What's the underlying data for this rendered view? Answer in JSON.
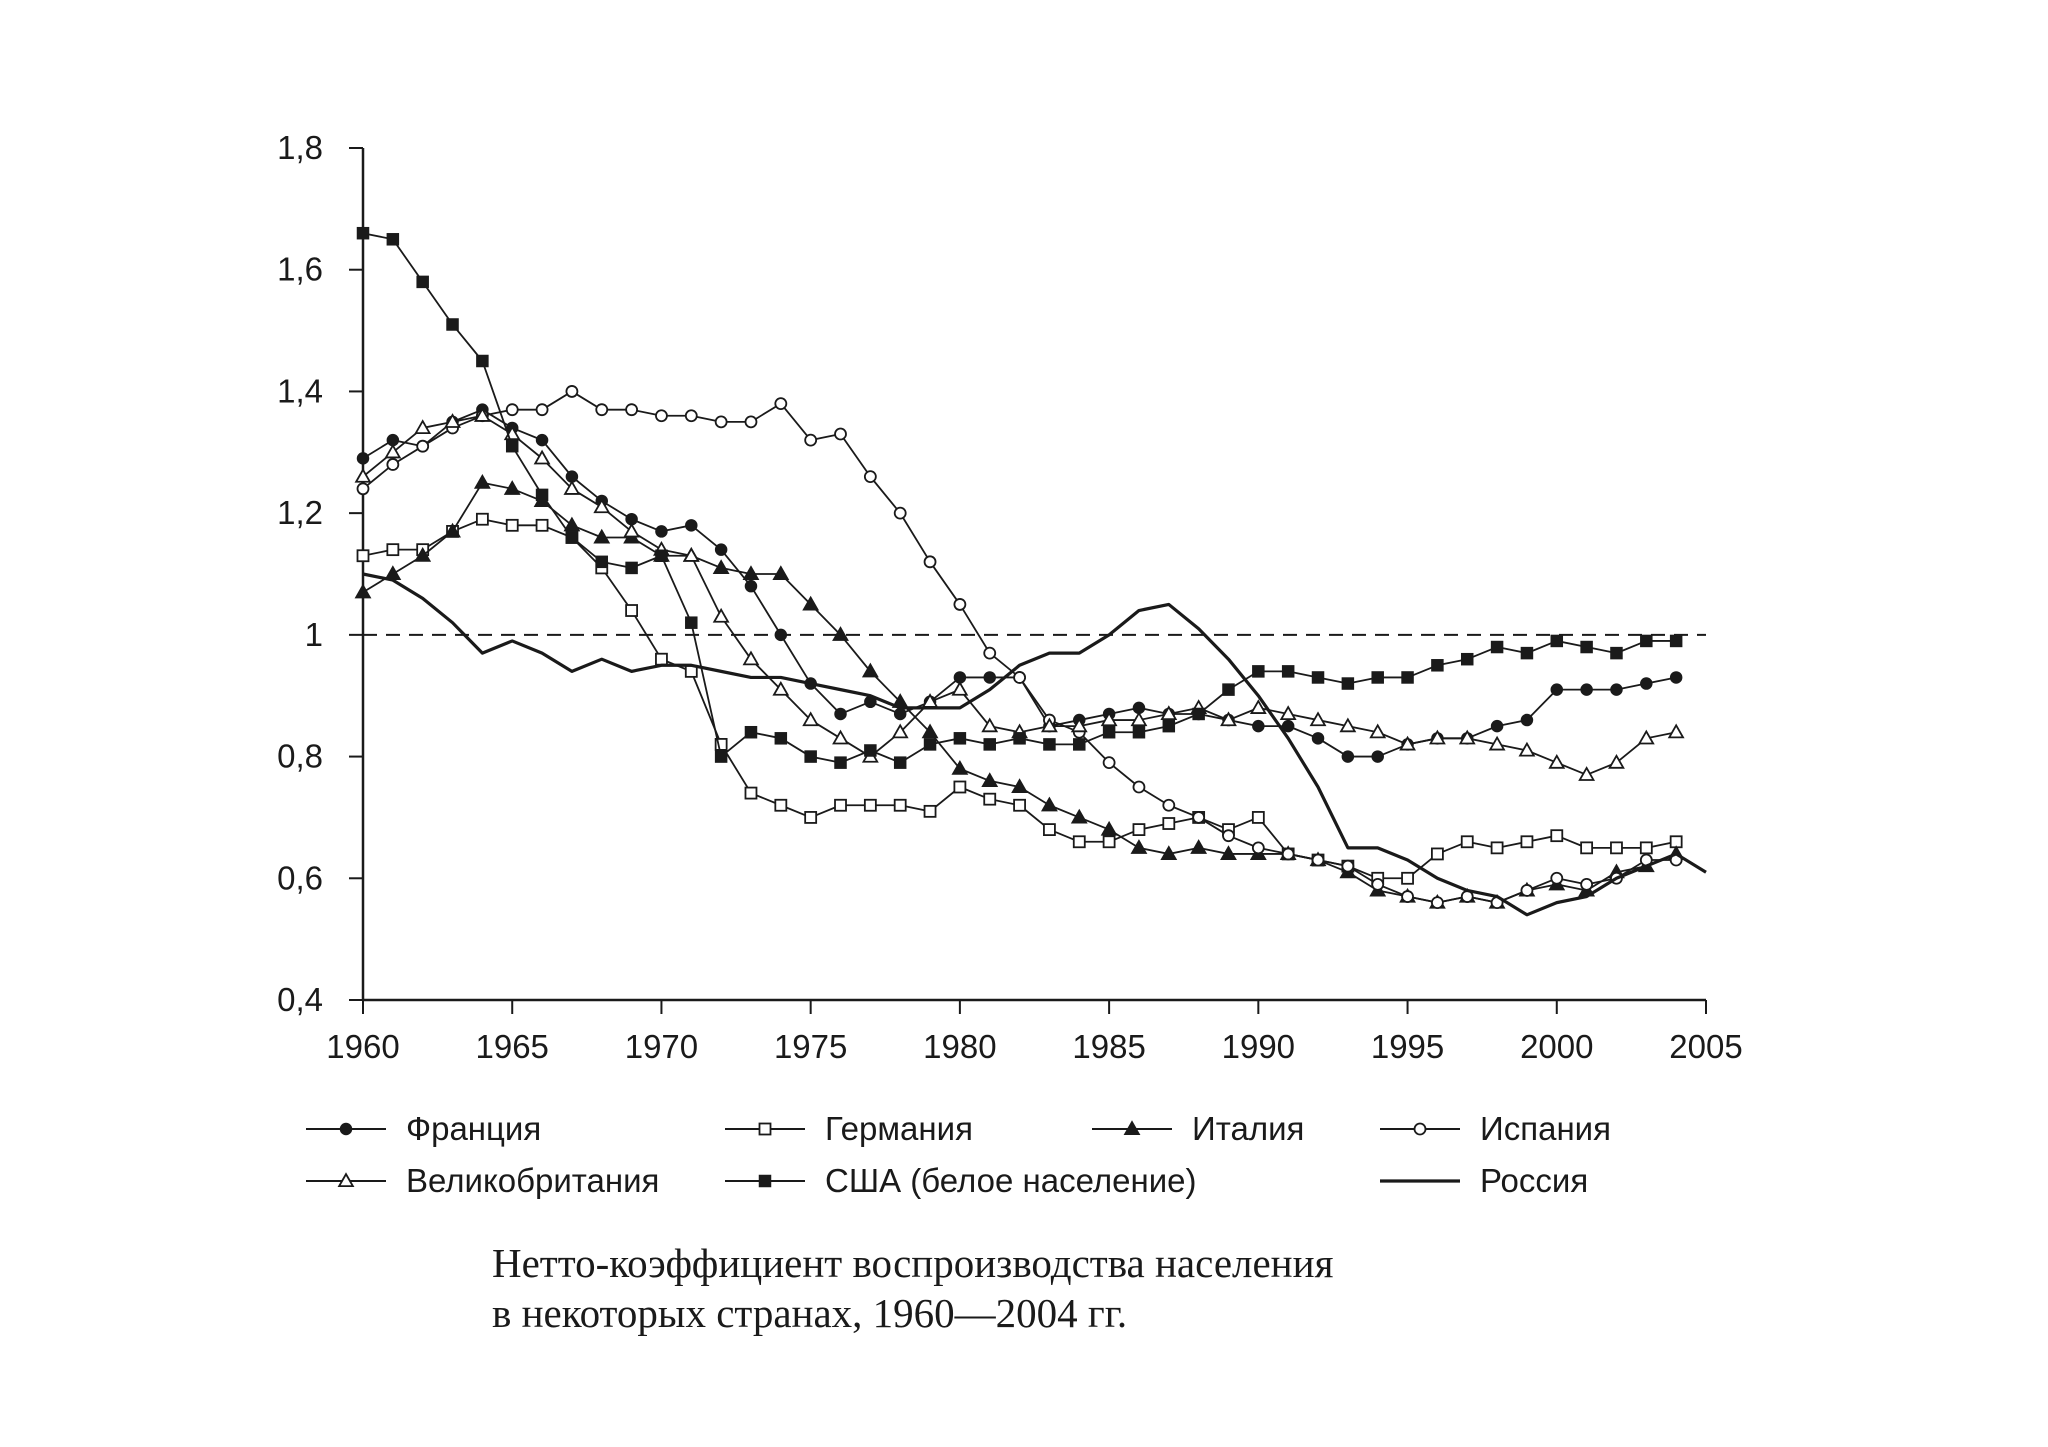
{
  "caption": {
    "line1": "Нетто-коэффициент воспроизводства населения",
    "line2": "в некоторых странах, 1960—2004 гг."
  },
  "chart_data": {
    "type": "line",
    "title": "Нетто-коэффициент воспроизводства населения в некоторых странах, 1960—2004 гг.",
    "xlabel": "",
    "ylabel": "",
    "xlim": [
      1960,
      2005
    ],
    "ylim": [
      0.4,
      1.8
    ],
    "x_ticks": [
      "1960",
      "1965",
      "1970",
      "1975",
      "1980",
      "1985",
      "1990",
      "1995",
      "2000",
      "2005"
    ],
    "y_ticks": [
      "0,4",
      "0,6",
      "0,8",
      "1",
      "1,2",
      "1,4",
      "1,6",
      "1,8"
    ],
    "reference_line": {
      "y": 1,
      "style": "dashed"
    },
    "legend": {
      "position": "bottom",
      "columns": 4
    },
    "grid": false,
    "series": [
      {
        "name": "Франция",
        "marker": "filled-circle",
        "color": "#1a1a1a",
        "x": [
          1960,
          1961,
          1962,
          1963,
          1964,
          1965,
          1966,
          1967,
          1968,
          1969,
          1970,
          1971,
          1972,
          1973,
          1974,
          1975,
          1976,
          1977,
          1978,
          1979,
          1980,
          1981,
          1982,
          1983,
          1984,
          1985,
          1986,
          1987,
          1988,
          1989,
          1990,
          1991,
          1992,
          1993,
          1994,
          1995,
          1996,
          1997,
          1998,
          1999,
          2000,
          2001,
          2002,
          2003,
          2004
        ],
        "values": [
          1.29,
          1.32,
          1.31,
          1.35,
          1.37,
          1.34,
          1.32,
          1.26,
          1.22,
          1.19,
          1.17,
          1.18,
          1.14,
          1.08,
          1.0,
          0.92,
          0.87,
          0.89,
          0.87,
          0.89,
          0.93,
          0.93,
          0.93,
          0.85,
          0.86,
          0.87,
          0.88,
          0.87,
          0.87,
          0.86,
          0.85,
          0.85,
          0.83,
          0.8,
          0.8,
          0.82,
          0.83,
          0.83,
          0.85,
          0.86,
          0.91,
          0.91,
          0.91,
          0.92,
          0.93
        ]
      },
      {
        "name": "Германия",
        "marker": "open-square",
        "color": "#1a1a1a",
        "x": [
          1960,
          1961,
          1962,
          1963,
          1964,
          1965,
          1966,
          1967,
          1968,
          1969,
          1970,
          1971,
          1972,
          1973,
          1974,
          1975,
          1976,
          1977,
          1978,
          1979,
          1980,
          1981,
          1982,
          1983,
          1984,
          1985,
          1986,
          1987,
          1988,
          1989,
          1990,
          1991,
          1992,
          1993,
          1994,
          1995,
          1996,
          1997,
          1998,
          1999,
          2000,
          2001,
          2002,
          2003,
          2004
        ],
        "values": [
          1.13,
          1.14,
          1.14,
          1.17,
          1.19,
          1.18,
          1.18,
          1.16,
          1.11,
          1.04,
          0.96,
          0.94,
          0.82,
          0.74,
          0.72,
          0.7,
          0.72,
          0.72,
          0.72,
          0.71,
          0.75,
          0.73,
          0.72,
          0.68,
          0.66,
          0.66,
          0.68,
          0.69,
          0.7,
          0.68,
          0.7,
          0.64,
          0.63,
          0.62,
          0.6,
          0.6,
          0.64,
          0.66,
          0.65,
          0.66,
          0.67,
          0.65,
          0.65,
          0.65,
          0.66
        ]
      },
      {
        "name": "Италия",
        "marker": "filled-triangle",
        "color": "#1a1a1a",
        "x": [
          1960,
          1961,
          1962,
          1963,
          1964,
          1965,
          1966,
          1967,
          1968,
          1969,
          1970,
          1971,
          1972,
          1973,
          1974,
          1975,
          1976,
          1977,
          1978,
          1979,
          1980,
          1981,
          1982,
          1983,
          1984,
          1985,
          1986,
          1987,
          1988,
          1989,
          1990,
          1991,
          1992,
          1993,
          1994,
          1995,
          1996,
          1997,
          1998,
          1999,
          2000,
          2001,
          2002,
          2003,
          2004
        ],
        "values": [
          1.07,
          1.1,
          1.13,
          1.17,
          1.25,
          1.24,
          1.22,
          1.18,
          1.16,
          1.16,
          1.13,
          1.13,
          1.11,
          1.1,
          1.1,
          1.05,
          1.0,
          0.94,
          0.89,
          0.84,
          0.78,
          0.76,
          0.75,
          0.72,
          0.7,
          0.68,
          0.65,
          0.64,
          0.65,
          0.64,
          0.64,
          0.64,
          0.63,
          0.61,
          0.58,
          0.57,
          0.56,
          0.57,
          0.56,
          0.58,
          0.59,
          0.58,
          0.61,
          0.62,
          0.64
        ]
      },
      {
        "name": "Испания",
        "marker": "open-circle",
        "color": "#1a1a1a",
        "x": [
          1960,
          1961,
          1962,
          1963,
          1964,
          1965,
          1966,
          1967,
          1968,
          1969,
          1970,
          1971,
          1972,
          1973,
          1974,
          1975,
          1976,
          1977,
          1978,
          1979,
          1980,
          1981,
          1982,
          1983,
          1984,
          1985,
          1986,
          1987,
          1988,
          1989,
          1990,
          1991,
          1992,
          1993,
          1994,
          1995,
          1996,
          1997,
          1998,
          1999,
          2000,
          2001,
          2002,
          2003,
          2004
        ],
        "values": [
          1.24,
          1.28,
          1.31,
          1.34,
          1.36,
          1.37,
          1.37,
          1.4,
          1.37,
          1.37,
          1.36,
          1.36,
          1.35,
          1.35,
          1.38,
          1.32,
          1.33,
          1.26,
          1.2,
          1.12,
          1.05,
          0.97,
          0.93,
          0.86,
          0.84,
          0.79,
          0.75,
          0.72,
          0.7,
          0.67,
          0.65,
          0.64,
          0.63,
          0.62,
          0.59,
          0.57,
          0.56,
          0.57,
          0.56,
          0.58,
          0.6,
          0.59,
          0.6,
          0.63,
          0.63
        ]
      },
      {
        "name": "Великобритания",
        "marker": "open-triangle",
        "color": "#1a1a1a",
        "x": [
          1960,
          1961,
          1962,
          1963,
          1964,
          1965,
          1966,
          1967,
          1968,
          1969,
          1970,
          1971,
          1972,
          1973,
          1974,
          1975,
          1976,
          1977,
          1978,
          1979,
          1980,
          1981,
          1982,
          1983,
          1984,
          1985,
          1986,
          1987,
          1988,
          1989,
          1990,
          1991,
          1992,
          1993,
          1994,
          1995,
          1996,
          1997,
          1998,
          1999,
          2000,
          2001,
          2002,
          2003,
          2004
        ],
        "values": [
          1.26,
          1.3,
          1.34,
          1.35,
          1.36,
          1.33,
          1.29,
          1.24,
          1.21,
          1.17,
          1.14,
          1.13,
          1.03,
          0.96,
          0.91,
          0.86,
          0.83,
          0.8,
          0.84,
          0.89,
          0.91,
          0.85,
          0.84,
          0.85,
          0.85,
          0.86,
          0.86,
          0.87,
          0.88,
          0.86,
          0.88,
          0.87,
          0.86,
          0.85,
          0.84,
          0.82,
          0.83,
          0.83,
          0.82,
          0.81,
          0.79,
          0.77,
          0.79,
          0.83,
          0.84
        ]
      },
      {
        "name": "США (белое население)",
        "marker": "filled-square",
        "color": "#1a1a1a",
        "x": [
          1960,
          1961,
          1962,
          1963,
          1964,
          1965,
          1966,
          1967,
          1968,
          1969,
          1970,
          1971,
          1972,
          1973,
          1974,
          1975,
          1976,
          1977,
          1978,
          1979,
          1980,
          1981,
          1982,
          1983,
          1984,
          1985,
          1986,
          1987,
          1988,
          1989,
          1990,
          1991,
          1992,
          1993,
          1994,
          1995,
          1996,
          1997,
          1998,
          1999,
          2000,
          2001,
          2002,
          2003,
          2004
        ],
        "values": [
          1.66,
          1.65,
          1.58,
          1.51,
          1.45,
          1.31,
          1.23,
          1.16,
          1.12,
          1.11,
          1.13,
          1.02,
          0.8,
          0.84,
          0.83,
          0.8,
          0.79,
          0.81,
          0.79,
          0.82,
          0.83,
          0.82,
          0.83,
          0.82,
          0.82,
          0.84,
          0.84,
          0.85,
          0.87,
          0.91,
          0.94,
          0.94,
          0.93,
          0.92,
          0.93,
          0.93,
          0.95,
          0.96,
          0.98,
          0.97,
          0.99,
          0.98,
          0.97,
          0.99,
          0.99
        ]
      },
      {
        "name": "Россия",
        "marker": "none",
        "color": "#1a1a1a",
        "x": [
          1960,
          1961,
          1962,
          1963,
          1964,
          1965,
          1966,
          1967,
          1968,
          1969,
          1970,
          1971,
          1972,
          1973,
          1974,
          1975,
          1976,
          1977,
          1978,
          1979,
          1980,
          1981,
          1982,
          1983,
          1984,
          1985,
          1986,
          1987,
          1988,
          1989,
          1990,
          1991,
          1992,
          1993,
          1994,
          1995,
          1996,
          1997,
          1998,
          1999,
          2000,
          2001,
          2002,
          2003,
          2004,
          2005
        ],
        "values": [
          1.1,
          1.09,
          1.06,
          1.02,
          0.97,
          0.99,
          0.97,
          0.94,
          0.96,
          0.94,
          0.95,
          0.95,
          0.94,
          0.93,
          0.93,
          0.92,
          0.91,
          0.9,
          0.88,
          0.88,
          0.88,
          0.91,
          0.95,
          0.97,
          0.97,
          1.0,
          1.04,
          1.05,
          1.01,
          0.96,
          0.9,
          0.83,
          0.75,
          0.65,
          0.65,
          0.63,
          0.6,
          0.58,
          0.57,
          0.54,
          0.56,
          0.57,
          0.6,
          0.62,
          0.64,
          0.61
        ]
      }
    ]
  }
}
